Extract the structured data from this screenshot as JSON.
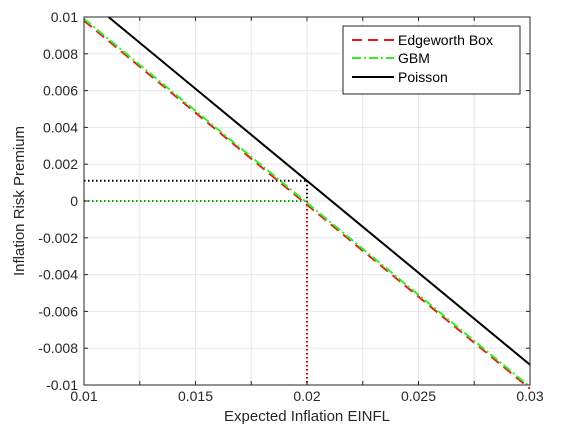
{
  "chart_data": {
    "type": "line",
    "xlabel": "Expected Inflation EINFL",
    "ylabel": "Inflation Risk Premium",
    "xlim": [
      0.01,
      0.03
    ],
    "ylim": [
      -0.01,
      0.01
    ],
    "xticks": [
      "0.01",
      "0.015",
      "0.02",
      "0.025",
      "0.03"
    ],
    "yticks": [
      "0.01",
      "0.008",
      "0.006",
      "0.004",
      "0.002",
      "0",
      "-0.002",
      "-0.004",
      "-0.006",
      "-0.008",
      "-0.01"
    ],
    "grid": true,
    "legend_position": "top-right",
    "series": [
      {
        "name": "Edgeworth Box",
        "x": [
          0.01,
          0.03
        ],
        "y": [
          0.0098,
          -0.0102
        ],
        "color": "#e41a1c",
        "style": "dashed"
      },
      {
        "name": "GBM",
        "x": [
          0.01,
          0.03
        ],
        "y": [
          0.0099,
          -0.0101
        ],
        "color": "#33ee22",
        "style": "dashdot"
      },
      {
        "name": "Poisson",
        "x": [
          0.0111,
          0.03
        ],
        "y": [
          0.01,
          -0.0089
        ],
        "color": "#000000",
        "style": "solid"
      }
    ],
    "reference_lines": [
      {
        "from": [
          0.01,
          0.0011
        ],
        "to": [
          0.02,
          0.0011
        ],
        "color": "#000000"
      },
      {
        "from": [
          0.02,
          0.0011
        ],
        "to": [
          0.02,
          0.0
        ],
        "color": "#000000"
      },
      {
        "from": [
          0.01,
          0.0
        ],
        "to": [
          0.02,
          0.0
        ],
        "color": "#00aa00"
      },
      {
        "from": [
          0.02,
          0.0
        ],
        "to": [
          0.02,
          -0.01
        ],
        "color": "#cc0000"
      }
    ]
  }
}
